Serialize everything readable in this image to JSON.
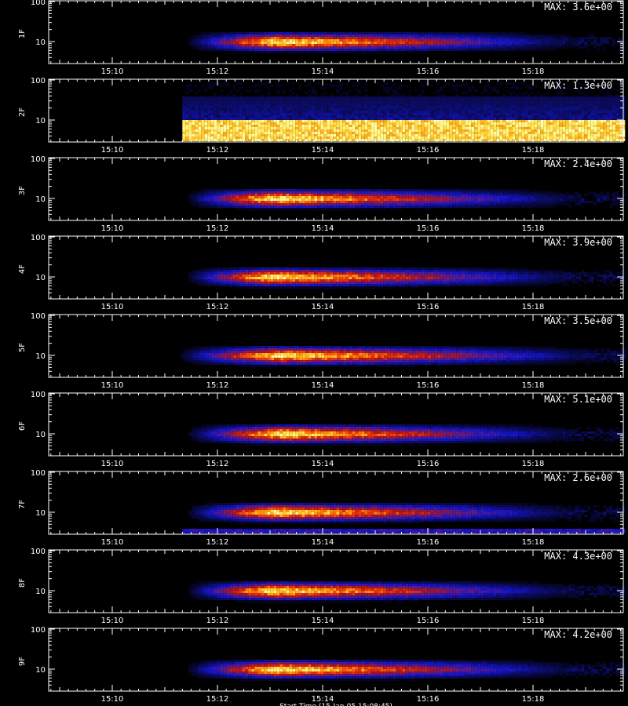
{
  "chart_data": {
    "type": "heatmap",
    "x_ticks": [
      "15:10",
      "15:12",
      "15:14",
      "15:16",
      "15:18"
    ],
    "y_ticks": [
      "100",
      "10"
    ],
    "footer": "Start Time (15-Jan-05 15:08:45)",
    "colormap": [
      "#000000",
      "#0a0a55",
      "#1414c8",
      "#5a1a8c",
      "#b41414",
      "#f03c0a",
      "#ffa010",
      "#ffe650",
      "#ffffb4"
    ],
    "panels": [
      {
        "name": "1F",
        "max_label": "MAX: 3.6e+00",
        "onset": "15:11:20",
        "peak": "15:13:05",
        "tail_end": "15:16:30",
        "band_center": 10,
        "intensity_note": "bright yellow core 15:12:50-15:13:30"
      },
      {
        "name": "2F",
        "max_label": "MAX: 1.3e+00",
        "onset": "15:11:20",
        "peak": "15:16:00",
        "tail_end": "15:19:45",
        "band_center": 6,
        "intensity_note": "saturated band 15:11:20 onward"
      },
      {
        "name": "3F",
        "max_label": "MAX: 2.4e+00",
        "onset": "15:11:20",
        "peak": "15:13:00",
        "tail_end": "15:16:30",
        "band_center": 10,
        "intensity_note": ""
      },
      {
        "name": "4F",
        "max_label": "MAX: 3.9e+00",
        "onset": "15:11:20",
        "peak": "15:13:00",
        "tail_end": "15:16:30",
        "band_center": 10,
        "intensity_note": ""
      },
      {
        "name": "5F",
        "max_label": "MAX: 3.5e+00",
        "onset": "15:11:10",
        "peak": "15:13:10",
        "tail_end": "15:17:00",
        "band_center": 10,
        "intensity_note": ""
      },
      {
        "name": "6F",
        "max_label": "MAX: 5.1e+00",
        "onset": "15:11:20",
        "peak": "15:13:10",
        "tail_end": "15:16:30",
        "band_center": 10,
        "intensity_note": ""
      },
      {
        "name": "7F",
        "max_label": "MAX: 2.6e+00",
        "onset": "15:11:20",
        "peak": "15:13:05",
        "tail_end": "15:16:30",
        "band_center": 10,
        "intensity_note": "secondary low band 15:11:20 onward"
      },
      {
        "name": "8F",
        "max_label": "MAX: 4.3e+00",
        "onset": "15:11:20",
        "peak": "15:13:00",
        "tail_end": "15:16:30",
        "band_center": 10,
        "intensity_note": ""
      },
      {
        "name": "9F",
        "max_label": "MAX: 4.2e+00",
        "onset": "15:11:20",
        "peak": "15:13:05",
        "tail_end": "15:16:30",
        "band_center": 10,
        "intensity_note": ""
      }
    ]
  }
}
